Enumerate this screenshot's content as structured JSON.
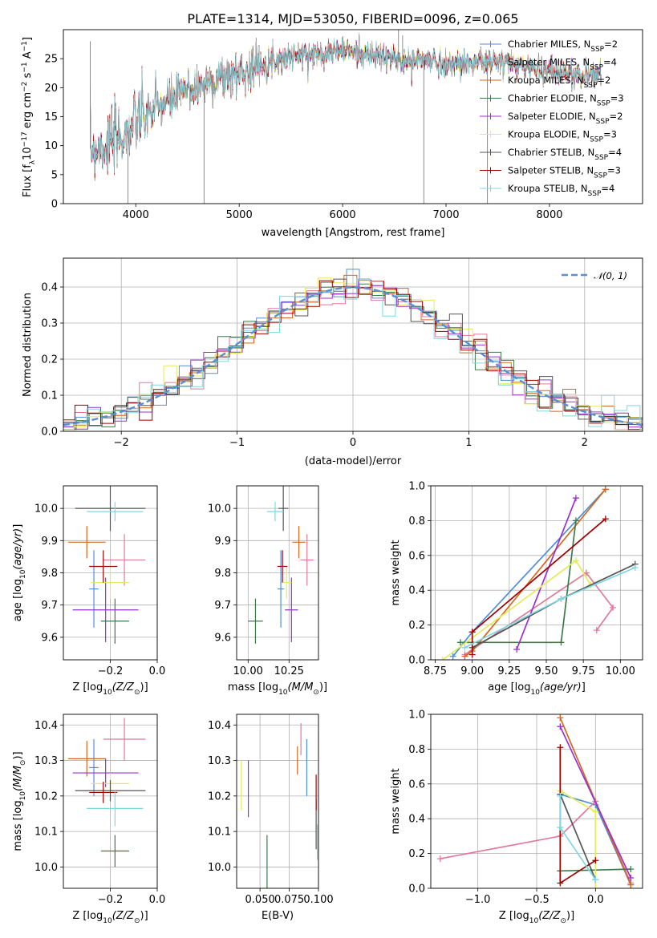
{
  "title": "PLATE=1314, MJD=53050, FIBERID=0096, z=0.065",
  "models": [
    {
      "legend": "Chabrier MILES, N",
      "nssp": "=2",
      "color": "#4f8fd8"
    },
    {
      "legend": "Salpeter MILES, N",
      "nssp": "=4",
      "color": "#e07a9b"
    },
    {
      "legend": "Kroupa MILES, N",
      "nssp": "=2",
      "color": "#d2691e"
    },
    {
      "legend": "Chabrier ELODIE, N",
      "nssp": "=3",
      "color": "#3d7a4a"
    },
    {
      "legend": "Salpeter ELODIE, N",
      "nssp": "=2",
      "color": "#9932cc"
    },
    {
      "legend": "Kroupa ELODIE, N",
      "nssp": "=3",
      "color": "#e3ec5a"
    },
    {
      "legend": "Chabrier STELIB, N",
      "nssp": "=4",
      "color": "#555555"
    },
    {
      "legend": "Salpeter STELIB, N",
      "nssp": "=3",
      "color": "#a00000"
    },
    {
      "legend": "Kroupa STELIB, N",
      "nssp": "=4",
      "color": "#7fd8e0"
    }
  ],
  "nssp_sub": "SSP",
  "chart_data": [
    {
      "type": "line",
      "id": "spectrum",
      "xlabel": "wavelength [Angstrom, rest frame]",
      "ylabel": "Flux [f",
      "ylabel_parts": [
        "Flux [f",
        "λ",
        "10",
        "−17",
        " erg cm",
        "−2",
        " s",
        "−1",
        " A",
        "−1",
        "]"
      ],
      "xlim": [
        3300,
        8900
      ],
      "ylim": [
        0,
        30
      ],
      "xticks": [
        4000,
        5000,
        6000,
        7000,
        8000
      ],
      "yticks": [
        0,
        5,
        10,
        15,
        20,
        25
      ],
      "continuum": [
        [
          3560,
          9.5
        ],
        [
          3700,
          10
        ],
        [
          3900,
          12
        ],
        [
          4000,
          14
        ],
        [
          4200,
          16.5
        ],
        [
          4500,
          19.5
        ],
        [
          4800,
          21.5
        ],
        [
          5000,
          22.5
        ],
        [
          5200,
          24
        ],
        [
          5500,
          25.5
        ],
        [
          5800,
          26
        ],
        [
          6000,
          26.5
        ],
        [
          6300,
          25.5
        ],
        [
          6600,
          24.5
        ],
        [
          6800,
          24.8
        ],
        [
          7000,
          24
        ],
        [
          7300,
          24.5
        ],
        [
          7600,
          24.2
        ],
        [
          8000,
          23
        ],
        [
          8300,
          22
        ],
        [
          8500,
          22.5
        ]
      ],
      "grid": false
    },
    {
      "type": "line",
      "id": "residuals",
      "xlabel": "(data-model)/error",
      "ylabel": "Normed distribution",
      "xlim": [
        -2.5,
        2.5
      ],
      "ylim": [
        0,
        0.48
      ],
      "xticks": [
        -2,
        -1,
        0,
        1,
        2
      ],
      "yticks": [
        0.0,
        0.1,
        0.2,
        0.3,
        0.4
      ],
      "series": [
        {
          "name": "𝒩(0, 1)",
          "mean": 0,
          "sigma": 1
        }
      ],
      "legend": "top-right",
      "grid": true
    },
    {
      "type": "scatter",
      "id": "age_vs_z",
      "xlabel": "Z [log",
      "ylabel": "age  [log",
      "xlim": [
        -0.4,
        0.0
      ],
      "ylim": [
        9.53,
        10.07
      ],
      "xticks": [
        -0.2,
        0.0
      ],
      "yticks": [
        9.6,
        9.7,
        9.8,
        9.9,
        10.0
      ],
      "points": [
        {
          "x": -0.27,
          "y": 9.75,
          "xerr": 0.02,
          "yerr": 0.12
        },
        {
          "x": -0.14,
          "y": 9.84,
          "xerr": 0.09,
          "yerr": 0.08
        },
        {
          "x": -0.3,
          "y": 9.895,
          "xerr": 0.08,
          "yerr": 0.05
        },
        {
          "x": -0.18,
          "y": 9.65,
          "xerr": 0.06,
          "yerr": 0.07
        },
        {
          "x": -0.22,
          "y": 9.685,
          "xerr": 0.14,
          "yerr": 0.1
        },
        {
          "x": -0.2,
          "y": 9.77,
          "xerr": 0.08,
          "yerr": 0.05
        },
        {
          "x": -0.2,
          "y": 10.0,
          "xerr": 0.15,
          "yerr": 0.07
        },
        {
          "x": -0.23,
          "y": 9.82,
          "xerr": 0.06,
          "yerr": 0.05
        },
        {
          "x": -0.18,
          "y": 9.99,
          "xerr": 0.12,
          "yerr": 0.03
        }
      ]
    },
    {
      "type": "scatter",
      "id": "age_vs_mass",
      "xlabel": "mass [log",
      "xlim": [
        9.93,
        10.43
      ],
      "ylim": [
        9.53,
        10.07
      ],
      "xticks": [
        10.0,
        10.25
      ],
      "yticks": [
        9.6,
        9.7,
        9.8,
        9.9,
        10.0
      ],
      "points": [
        {
          "x": 10.2,
          "y": 9.75,
          "xerr": 0.02,
          "yerr": 0.12
        },
        {
          "x": 10.36,
          "y": 9.84,
          "xerr": 0.04,
          "yerr": 0.08
        },
        {
          "x": 10.31,
          "y": 9.895,
          "xerr": 0.04,
          "yerr": 0.05
        },
        {
          "x": 10.045,
          "y": 9.65,
          "xerr": 0.045,
          "yerr": 0.07
        },
        {
          "x": 10.265,
          "y": 9.685,
          "xerr": 0.04,
          "yerr": 0.1
        },
        {
          "x": 10.235,
          "y": 9.77,
          "xerr": 0.03,
          "yerr": 0.05
        },
        {
          "x": 10.215,
          "y": 10.0,
          "xerr": 0.03,
          "yerr": 0.07
        },
        {
          "x": 10.21,
          "y": 9.82,
          "xerr": 0.03,
          "yerr": 0.05
        },
        {
          "x": 10.165,
          "y": 9.99,
          "xerr": 0.05,
          "yerr": 0.03
        }
      ]
    },
    {
      "type": "line",
      "id": "weight_vs_age",
      "xlabel": "age  [log",
      "ylabel": "mass weight",
      "xlim": [
        8.72,
        10.15
      ],
      "ylim": [
        0,
        1.0
      ],
      "xticks": [
        8.75,
        9.0,
        9.25,
        9.5,
        9.75,
        10.0
      ],
      "yticks": [
        0.0,
        0.2,
        0.4,
        0.6,
        0.8,
        1.0
      ],
      "series": [
        {
          "x": [
            8.87,
            9.0,
            9.9
          ],
          "y": [
            0.02,
            0.16,
            0.98
          ]
        },
        {
          "x": [
            9.84,
            9.95,
            9.77,
            8.95
          ],
          "y": [
            0.17,
            0.3,
            0.5,
            0.03
          ]
        },
        {
          "x": [
            8.95,
            9.0,
            9.9
          ],
          "y": [
            0.02,
            0.05,
            0.98
          ]
        },
        {
          "x": [
            8.92,
            9.6,
            9.7
          ],
          "y": [
            0.1,
            0.1,
            0.8
          ]
        },
        {
          "x": [
            9.3,
            9.7
          ],
          "y": [
            0.06,
            0.93
          ]
        },
        {
          "x": [
            8.8,
            9.7,
            9.8
          ],
          "y": [
            0.0,
            0.57,
            0.43
          ]
        },
        {
          "x": [
            9.0,
            9.6,
            10.1
          ],
          "y": [
            0.07,
            0.35,
            0.55
          ]
        },
        {
          "x": [
            9.0,
            9.0,
            9.9
          ],
          "y": [
            0.03,
            0.16,
            0.81
          ]
        },
        {
          "x": [
            8.95,
            9.6,
            10.1
          ],
          "y": [
            0.07,
            0.35,
            0.53
          ]
        }
      ],
      "grid": true
    },
    {
      "type": "scatter",
      "id": "mass_vs_z",
      "xlabel": "Z [log",
      "ylabel": "mass [log",
      "xlim": [
        -0.4,
        0.0
      ],
      "ylim": [
        9.94,
        10.43
      ],
      "xticks": [
        -0.2,
        0.0
      ],
      "yticks": [
        10.0,
        10.1,
        10.2,
        10.3,
        10.4
      ],
      "points": [
        {
          "x": -0.27,
          "y": 10.28,
          "xerr": 0.02,
          "yerr": 0.08
        },
        {
          "x": -0.14,
          "y": 10.36,
          "xerr": 0.09,
          "yerr": 0.06
        },
        {
          "x": -0.3,
          "y": 10.305,
          "xerr": 0.08,
          "yerr": 0.05
        },
        {
          "x": -0.18,
          "y": 10.045,
          "xerr": 0.06,
          "yerr": 0.045
        },
        {
          "x": -0.22,
          "y": 10.265,
          "xerr": 0.14,
          "yerr": 0.04
        },
        {
          "x": -0.2,
          "y": 10.235,
          "xerr": 0.08,
          "yerr": 0.03
        },
        {
          "x": -0.2,
          "y": 10.215,
          "xerr": 0.15,
          "yerr": 0.03
        },
        {
          "x": -0.23,
          "y": 10.21,
          "xerr": 0.06,
          "yerr": 0.03
        },
        {
          "x": -0.18,
          "y": 10.165,
          "xerr": 0.12,
          "yerr": 0.05
        }
      ]
    },
    {
      "type": "scatter",
      "id": "mass_vs_ebv",
      "xlabel": "E(B-V)",
      "xlim": [
        0.03,
        0.1
      ],
      "ylim": [
        9.94,
        10.43
      ],
      "xticks": [
        0.05,
        0.075,
        0.1
      ],
      "xtick_labels": [
        "0.050",
        "0.075",
        "0.100"
      ],
      "yticks": [
        10.0,
        10.1,
        10.2,
        10.3,
        10.4
      ],
      "points": [
        {
          "x": 0.09,
          "y": 10.28,
          "yerr": 0.08
        },
        {
          "x": 0.085,
          "y": 10.36,
          "yerr": 0.045
        },
        {
          "x": 0.082,
          "y": 10.3,
          "yerr": 0.04
        },
        {
          "x": 0.056,
          "y": 10.0,
          "yerr": 0.09
        },
        {
          "x": 0.04,
          "y": 10.22,
          "yerr": 0.08
        },
        {
          "x": 0.034,
          "y": 10.23,
          "yerr": 0.07
        },
        {
          "x": 0.098,
          "y": 10.12,
          "yerr": 0.07
        },
        {
          "x": 0.098,
          "y": 10.21,
          "yerr": 0.05
        },
        {
          "x": 0.099,
          "y": 10.07,
          "yerr": 0.05
        }
      ]
    },
    {
      "type": "line",
      "id": "weight_vs_z",
      "xlabel": "Z [log",
      "ylabel": "mass weight",
      "xlim": [
        -1.4,
        0.4
      ],
      "ylim": [
        0,
        1.0
      ],
      "xticks": [
        -1.0,
        -0.5,
        0.0
      ],
      "yticks": [
        0.0,
        0.2,
        0.4,
        0.6,
        0.8,
        1.0
      ],
      "series": [
        {
          "x": [
            -0.3,
            0.0,
            0.3
          ],
          "y": [
            0.54,
            0.48,
            0.02
          ]
        },
        {
          "x": [
            -1.32,
            -0.3,
            0.0,
            0.3
          ],
          "y": [
            0.17,
            0.3,
            0.5,
            0.03
          ]
        },
        {
          "x": [
            -0.3,
            0.3
          ],
          "y": [
            0.98,
            0.02
          ]
        },
        {
          "x": [
            -0.3,
            0.3
          ],
          "y": [
            0.1,
            0.11
          ]
        },
        {
          "x": [
            -0.3,
            0.3
          ],
          "y": [
            0.93,
            0.06
          ]
        },
        {
          "x": [
            -0.3,
            0.0,
            0.0
          ],
          "y": [
            0.56,
            0.44,
            0.0
          ]
        },
        {
          "x": [
            -0.3,
            0.0
          ],
          "y": [
            0.54,
            0.05
          ]
        },
        {
          "x": [
            -0.3,
            -0.3,
            0.0
          ],
          "y": [
            0.81,
            0.03,
            0.16
          ]
        },
        {
          "x": [
            -0.3,
            -0.3,
            0.0
          ],
          "y": [
            0.53,
            0.35,
            0.05
          ]
        }
      ],
      "grid": true
    }
  ],
  "labels": {
    "z_suffix": "(Z/Z",
    "mass_suffix": "(M/M",
    "age_suffix": "(age/yr)",
    "sun": "⊙",
    "log_sub": "10",
    "close": ")]",
    "age_close": "]"
  }
}
